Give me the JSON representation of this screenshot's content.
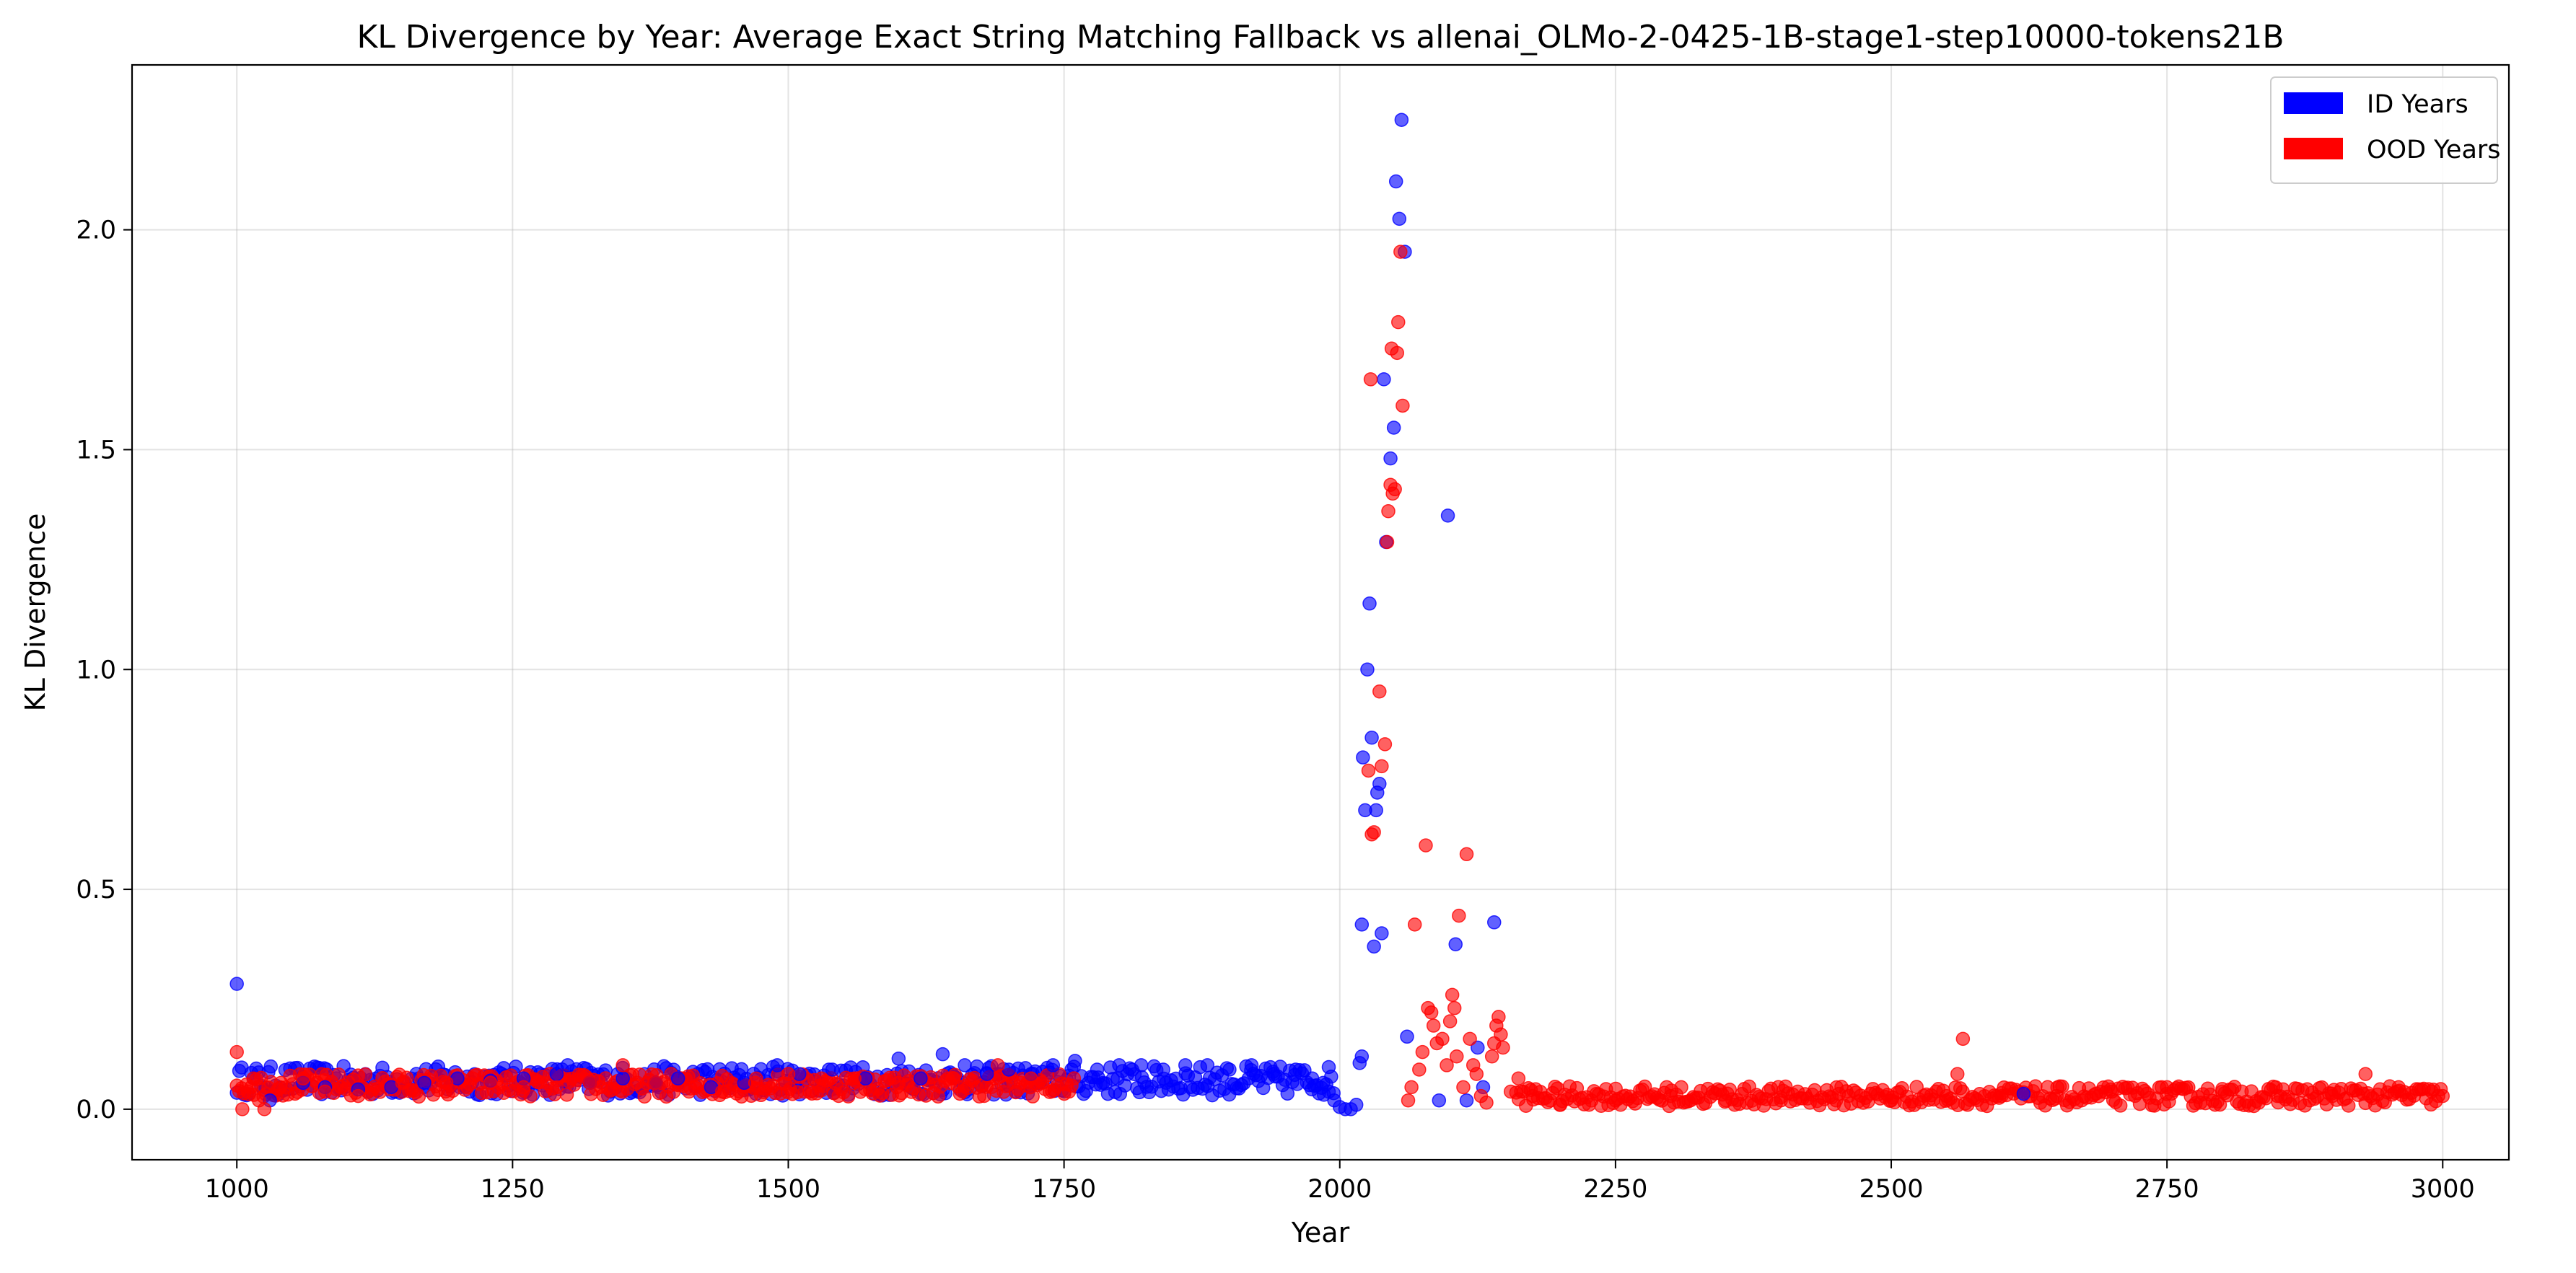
{
  "chart_data": {
    "type": "scatter",
    "title": "KL Divergence by Year: Average Exact String Matching Fallback vs allenai_OLMo-2-0425-1B-stage1-step10000-tokens21B",
    "xlabel": "Year",
    "ylabel": "KL Divergence",
    "xlim": [
      905,
      3060
    ],
    "ylim": [
      -0.115,
      2.375
    ],
    "xticks": [
      1000,
      1250,
      1500,
      1750,
      2000,
      2250,
      2500,
      2750,
      3000
    ],
    "xtick_labels": [
      "1000",
      "1250",
      "1500",
      "1750",
      "2000",
      "2250",
      "2500",
      "2750",
      "3000"
    ],
    "yticks": [
      0.0,
      0.5,
      1.0,
      1.5,
      2.0
    ],
    "ytick_labels": [
      "0.0",
      "0.5",
      "1.0",
      "1.5",
      "2.0"
    ],
    "grid": true,
    "legend_position": "top-right",
    "legend": [
      {
        "label": "ID Years",
        "color": "#0000ff"
      },
      {
        "label": "OOD Years",
        "color": "#ff0000"
      }
    ],
    "series": [
      {
        "name": "ID Years",
        "color": "#0000ff",
        "points": [
          [
            1000,
            0.285
          ],
          [
            1030,
            0.02
          ],
          [
            1060,
            0.06
          ],
          [
            1080,
            0.05
          ],
          [
            1110,
            0.045
          ],
          [
            1140,
            0.05
          ],
          [
            1170,
            0.06
          ],
          [
            1200,
            0.07
          ],
          [
            1230,
            0.065
          ],
          [
            1260,
            0.07
          ],
          [
            1290,
            0.08
          ],
          [
            1300,
            0.1
          ],
          [
            1320,
            0.06
          ],
          [
            1350,
            0.07
          ],
          [
            1380,
            0.06
          ],
          [
            1400,
            0.07
          ],
          [
            1430,
            0.05
          ],
          [
            1460,
            0.06
          ],
          [
            1490,
            0.1
          ],
          [
            1510,
            0.08
          ],
          [
            1540,
            0.09
          ],
          [
            1570,
            0.07
          ],
          [
            1600,
            0.115
          ],
          [
            1620,
            0.07
          ],
          [
            1640,
            0.125
          ],
          [
            1660,
            0.1
          ],
          [
            1680,
            0.08
          ],
          [
            1700,
            0.09
          ],
          [
            1720,
            0.08
          ],
          [
            1740,
            0.1
          ],
          [
            1760,
            0.11
          ],
          [
            1780,
            0.09
          ],
          [
            1800,
            0.1
          ],
          [
            1820,
            0.1
          ],
          [
            1840,
            0.09
          ],
          [
            1860,
            0.1
          ],
          [
            1880,
            0.1
          ],
          [
            1900,
            0.09
          ],
          [
            1920,
            0.1
          ],
          [
            1940,
            0.08
          ],
          [
            1960,
            0.09
          ],
          [
            1975,
            0.07
          ],
          [
            1985,
            0.06
          ],
          [
            1990,
            0.04
          ],
          [
            1995,
            0.02
          ],
          [
            2000,
            0.005
          ],
          [
            2005,
            0.0
          ],
          [
            2010,
            0.0
          ],
          [
            2015,
            0.01
          ],
          [
            2018,
            0.105
          ],
          [
            2020,
            0.12
          ],
          [
            2020,
            0.42
          ],
          [
            2021,
            0.8
          ],
          [
            2023,
            0.68
          ],
          [
            2025,
            1.0
          ],
          [
            2027,
            1.15
          ],
          [
            2029,
            0.845
          ],
          [
            2031,
            0.37
          ],
          [
            2033,
            0.68
          ],
          [
            2034,
            0.72
          ],
          [
            2036,
            0.74
          ],
          [
            2038,
            0.4
          ],
          [
            2040,
            1.66
          ],
          [
            2042,
            1.29
          ],
          [
            2046,
            1.48
          ],
          [
            2049,
            1.55
          ],
          [
            2051,
            2.11
          ],
          [
            2054,
            2.025
          ],
          [
            2056,
            2.25
          ],
          [
            2059,
            1.95
          ],
          [
            2061,
            0.165
          ],
          [
            2098,
            1.35
          ],
          [
            2105,
            0.375
          ],
          [
            2140,
            0.425
          ],
          [
            2125,
            0.14
          ],
          [
            2090,
            0.02
          ],
          [
            2115,
            0.02
          ],
          [
            2130,
            0.05
          ],
          [
            2620,
            0.035
          ]
        ]
      },
      {
        "name": "OOD Years",
        "color": "#ff0000",
        "points": [
          [
            1000,
            0.13
          ],
          [
            1005,
            0.0
          ],
          [
            1010,
            0.04
          ],
          [
            1015,
            0.07
          ],
          [
            1020,
            0.02
          ],
          [
            1025,
            0.0
          ],
          [
            1040,
            0.06
          ],
          [
            1060,
            0.07
          ],
          [
            1080,
            0.04
          ],
          [
            1110,
            0.03
          ],
          [
            1150,
            0.06
          ],
          [
            1190,
            0.06
          ],
          [
            1230,
            0.06
          ],
          [
            1260,
            0.05
          ],
          [
            1290,
            0.05
          ],
          [
            1320,
            0.06
          ],
          [
            1350,
            0.1
          ],
          [
            1380,
            0.06
          ],
          [
            1410,
            0.04
          ],
          [
            1440,
            0.04
          ],
          [
            1470,
            0.06
          ],
          [
            1500,
            0.08
          ],
          [
            1530,
            0.07
          ],
          [
            1560,
            0.07
          ],
          [
            1600,
            0.06
          ],
          [
            1650,
            0.07
          ],
          [
            1690,
            0.1
          ],
          [
            1720,
            0.07
          ],
          [
            2026,
            0.77
          ],
          [
            2028,
            1.66
          ],
          [
            2029,
            0.625
          ],
          [
            2031,
            0.63
          ],
          [
            2036,
            0.95
          ],
          [
            2038,
            0.78
          ],
          [
            2041,
            0.83
          ],
          [
            2043,
            1.29
          ],
          [
            2044,
            1.36
          ],
          [
            2046,
            1.42
          ],
          [
            2047,
            1.73
          ],
          [
            2048,
            1.4
          ],
          [
            2050,
            1.41
          ],
          [
            2052,
            1.72
          ],
          [
            2053,
            1.79
          ],
          [
            2055,
            1.95
          ],
          [
            2057,
            1.6
          ],
          [
            2062,
            0.02
          ],
          [
            2065,
            0.05
          ],
          [
            2068,
            0.42
          ],
          [
            2072,
            0.09
          ],
          [
            2075,
            0.13
          ],
          [
            2078,
            0.6
          ],
          [
            2080,
            0.23
          ],
          [
            2083,
            0.22
          ],
          [
            2085,
            0.19
          ],
          [
            2088,
            0.15
          ],
          [
            2093,
            0.16
          ],
          [
            2097,
            0.1
          ],
          [
            2100,
            0.2
          ],
          [
            2102,
            0.26
          ],
          [
            2104,
            0.23
          ],
          [
            2106,
            0.12
          ],
          [
            2108,
            0.44
          ],
          [
            2112,
            0.05
          ],
          [
            2115,
            0.58
          ],
          [
            2118,
            0.16
          ],
          [
            2121,
            0.1
          ],
          [
            2124,
            0.08
          ],
          [
            2128,
            0.03
          ],
          [
            2133,
            0.015
          ],
          [
            2138,
            0.12
          ],
          [
            2140,
            0.15
          ],
          [
            2142,
            0.19
          ],
          [
            2144,
            0.21
          ],
          [
            2146,
            0.17
          ],
          [
            2148,
            0.14
          ],
          [
            2155,
            0.04
          ],
          [
            2162,
            0.07
          ],
          [
            2175,
            0.03
          ],
          [
            2200,
            0.01
          ],
          [
            2250,
            0.02
          ],
          [
            2300,
            0.03
          ],
          [
            2350,
            0.02
          ],
          [
            2400,
            0.02
          ],
          [
            2450,
            0.02
          ],
          [
            2500,
            0.02
          ],
          [
            2550,
            0.03
          ],
          [
            2560,
            0.08
          ],
          [
            2565,
            0.16
          ],
          [
            2600,
            0.03
          ],
          [
            2650,
            0.03
          ],
          [
            2700,
            0.04
          ],
          [
            2750,
            0.05
          ],
          [
            2800,
            0.04
          ],
          [
            2850,
            0.03
          ],
          [
            2900,
            0.03
          ],
          [
            2930,
            0.08
          ],
          [
            2960,
            0.05
          ],
          [
            2990,
            0.04
          ],
          [
            3000,
            0.03
          ]
        ]
      }
    ],
    "dense_band": [
      {
        "series": "ID Years",
        "x_range": [
          1000,
          1995
        ],
        "y_range": [
          0.02,
          0.11
        ]
      },
      {
        "series": "OOD Years",
        "x_range": [
          1000,
          1760
        ],
        "y_range": [
          0.02,
          0.09
        ]
      },
      {
        "series": "OOD Years",
        "x_range": [
          2160,
          3000
        ],
        "y_range": [
          0.0,
          0.06
        ]
      }
    ]
  }
}
